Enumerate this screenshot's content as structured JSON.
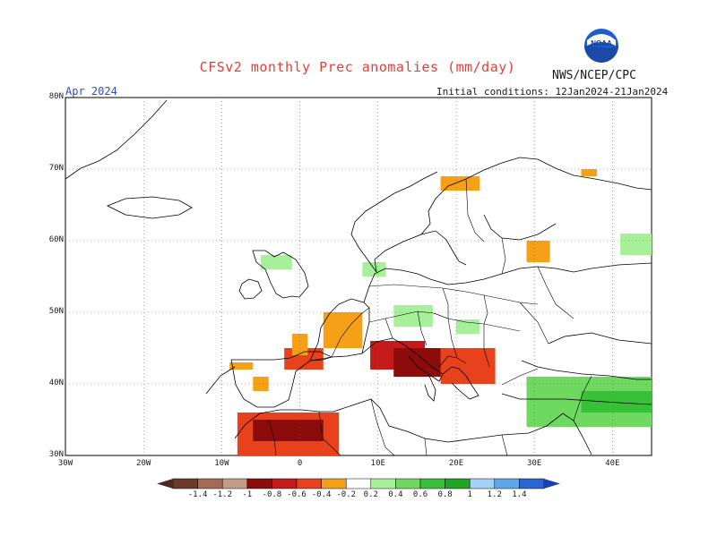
{
  "header": {
    "title": "CFSv2 monthly Prec anomalies (mm/day)",
    "agency": "NWS/NCEP/CPC",
    "logo_text": "NOAA",
    "month": "Apr 2024",
    "initial_conditions": "Initial conditions: 12Jan2024-21Jan2024"
  },
  "axes": {
    "lat_ticks": [
      "80N",
      "70N",
      "60N",
      "50N",
      "40N",
      "30N"
    ],
    "lon_ticks": [
      "30W",
      "20W",
      "10W",
      "0",
      "10E",
      "20E",
      "30E",
      "40E"
    ]
  },
  "colorbar": {
    "ticks": [
      "-1.4",
      "-1.2",
      "-1",
      "-0.8",
      "-0.6",
      "-0.4",
      "-0.2",
      "0.2",
      "0.4",
      "0.6",
      "0.8",
      "1",
      "1.2",
      "1.4"
    ],
    "colors": [
      "#6b3a28",
      "#a56a55",
      "#c49b89",
      "#8c0c0c",
      "#c41a1a",
      "#e8421c",
      "#f5a016",
      "#ffffff",
      "#a7f09a",
      "#6ed860",
      "#38c038",
      "#1fa51f",
      "#a0d3f5",
      "#5fa8e8",
      "#2b66d6"
    ],
    "colors_legend_order": "brown, light-brown, pinkish, dark-red, red, orange-red, orange, white, light-green, green, medium-green, dark-green, light-blue, blue, dark-blue"
  },
  "map_data": {
    "extent": {
      "lon": [
        -30,
        45
      ],
      "lat": [
        30,
        80
      ]
    },
    "anomaly_regions": [
      {
        "name": "northern-morocco",
        "lon": [
          -8,
          5
        ],
        "lat": [
          30,
          36
        ],
        "value": -0.5
      },
      {
        "name": "morocco-core",
        "lon": [
          -6,
          3
        ],
        "lat": [
          32,
          35
        ],
        "value": -0.9
      },
      {
        "name": "portugal-coast",
        "lon": [
          -9,
          -6
        ],
        "lat": [
          42,
          43
        ],
        "value": -0.3
      },
      {
        "name": "central-spain",
        "lon": [
          -6,
          -4
        ],
        "lat": [
          39,
          41
        ],
        "value": -0.3
      },
      {
        "name": "southwest-france",
        "lon": [
          -2,
          3
        ],
        "lat": [
          42,
          45
        ],
        "value": -0.4
      },
      {
        "name": "western-france",
        "lon": [
          -1,
          1
        ],
        "lat": [
          44,
          47
        ],
        "value": -0.3
      },
      {
        "name": "eastern-france-alps",
        "lon": [
          3,
          8
        ],
        "lat": [
          45,
          50
        ],
        "value": -0.3
      },
      {
        "name": "northern-italy",
        "lon": [
          9,
          16
        ],
        "lat": [
          42,
          46
        ],
        "value": -0.6
      },
      {
        "name": "italy-adriatic",
        "lon": [
          12,
          19
        ],
        "lat": [
          41,
          45
        ],
        "value": -0.8
      },
      {
        "name": "balkans",
        "lon": [
          18,
          25
        ],
        "lat": [
          40,
          45
        ],
        "value": -0.4
      },
      {
        "name": "northern-scandinavia",
        "lon": [
          18,
          23
        ],
        "lat": [
          67,
          69
        ],
        "value": -0.3
      },
      {
        "name": "gulf-of-finland",
        "lon": [
          29,
          32
        ],
        "lat": [
          57,
          60
        ],
        "value": -0.3
      },
      {
        "name": "kola",
        "lon": [
          36,
          38
        ],
        "lat": [
          69,
          70
        ],
        "value": -0.3
      },
      {
        "name": "scotland",
        "lon": [
          -5,
          -1
        ],
        "lat": [
          56,
          58
        ],
        "value": 0.3
      },
      {
        "name": "denmark",
        "lon": [
          8,
          11
        ],
        "lat": [
          55,
          57
        ],
        "value": 0.3
      },
      {
        "name": "central-europe",
        "lon": [
          12,
          17
        ],
        "lat": [
          48,
          51
        ],
        "value": 0.3
      },
      {
        "name": "carpathians",
        "lon": [
          20,
          23
        ],
        "lat": [
          47,
          49
        ],
        "value": 0.3
      },
      {
        "name": "turkey",
        "lon": [
          29,
          45
        ],
        "lat": [
          34,
          41
        ],
        "value": 0.5
      },
      {
        "name": "eastern-turkey",
        "lon": [
          36,
          45
        ],
        "lat": [
          36,
          39
        ],
        "value": 0.8
      },
      {
        "name": "russia-east",
        "lon": [
          41,
          45
        ],
        "lat": [
          58,
          61
        ],
        "value": 0.3
      }
    ]
  }
}
